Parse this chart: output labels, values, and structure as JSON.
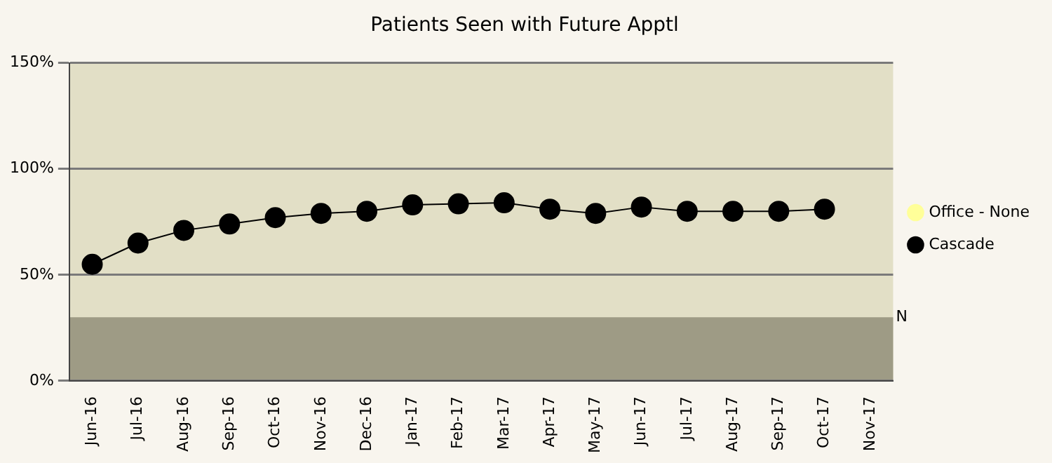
{
  "chart_data": {
    "type": "line",
    "title": "Patients Seen with Future Apptl",
    "categories": [
      "Jun-16",
      "Jul-16",
      "Aug-16",
      "Sep-16",
      "Oct-16",
      "Nov-16",
      "Dec-16",
      "Jan-17",
      "Feb-17",
      "Mar-17",
      "Apr-17",
      "May-17",
      "Jun-17",
      "Jul-17",
      "Aug-17",
      "Sep-17",
      "Oct-17",
      "Nov-17"
    ],
    "series": [
      {
        "name": "Office - None",
        "color": "#ffff99",
        "values": [
          null,
          null,
          null,
          null,
          null,
          null,
          null,
          null,
          null,
          null,
          null,
          null,
          null,
          null,
          null,
          null,
          null,
          null
        ]
      },
      {
        "name": "Cascade",
        "color": "#000000",
        "values": [
          55,
          65,
          71,
          74,
          77,
          79,
          80,
          83,
          83.5,
          84,
          81,
          79,
          82,
          80,
          80,
          80,
          81,
          null
        ]
      }
    ],
    "ylim": [
      0,
      150
    ],
    "yticks": [
      {
        "value": 0,
        "label": "0%"
      },
      {
        "value": 50,
        "label": "50%"
      },
      {
        "value": 100,
        "label": "100%"
      },
      {
        "value": 150,
        "label": "150%"
      }
    ],
    "bands": [
      {
        "axis": "y",
        "from": 0,
        "to": 30,
        "label": "N",
        "color": "#9e9b85"
      }
    ],
    "grid": "y",
    "legend": "right",
    "marker": "circle",
    "line_style": "solid"
  }
}
